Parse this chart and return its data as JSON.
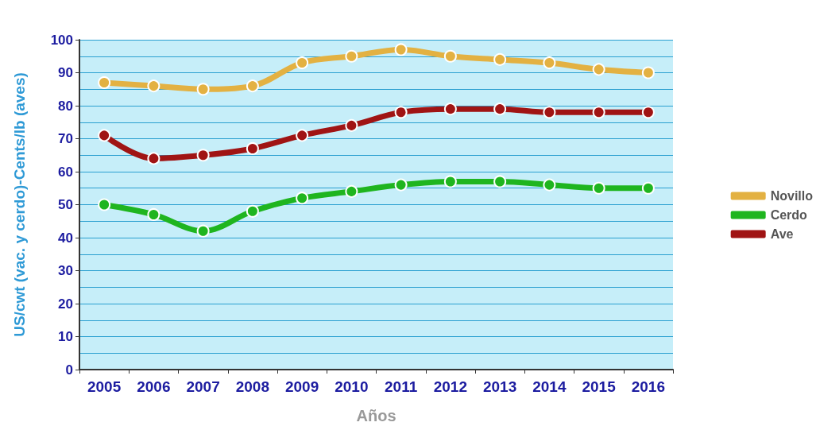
{
  "chart_data": {
    "type": "line",
    "xlabel": "Años",
    "ylabel": "US/cwt (vac. y cerdo)-Cents/lb (aves)",
    "categories": [
      "2005",
      "2006",
      "2007",
      "2008",
      "2009",
      "2010",
      "2011",
      "2012",
      "2013",
      "2014",
      "2015",
      "2016"
    ],
    "series": [
      {
        "name": "Novillo",
        "color": "#e3b142",
        "values": [
          87,
          86,
          85,
          86,
          93,
          95,
          97,
          95,
          94,
          93,
          91,
          90
        ]
      },
      {
        "name": "Cerdo",
        "color": "#1fb51f",
        "values": [
          50,
          47,
          42,
          48,
          52,
          54,
          56,
          57,
          57,
          56,
          55,
          55
        ]
      },
      {
        "name": "Ave",
        "color": "#a01414",
        "values": [
          71,
          64,
          65,
          67,
          71,
          74,
          78,
          79,
          79,
          78,
          78,
          78
        ]
      }
    ],
    "ylim": [
      0,
      100
    ],
    "yticks": [
      0,
      10,
      20,
      30,
      40,
      50,
      60,
      70,
      80,
      90,
      100
    ],
    "grid": "y",
    "legend": "right",
    "marker": "circle",
    "line_style": "solid"
  }
}
